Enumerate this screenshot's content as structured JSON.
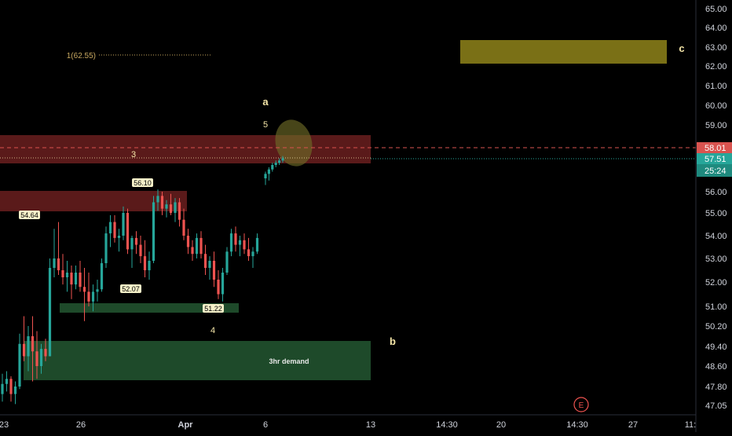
{
  "chart_data": {
    "type": "candlestick",
    "y_axis": {
      "position": "right",
      "ticks": [
        "65.00",
        "64.00",
        "63.00",
        "62.00",
        "61.00",
        "60.00",
        "59.00",
        "56.00",
        "55.00",
        "54.00",
        "53.00",
        "52.00",
        "51.00",
        "50.20",
        "49.40",
        "48.60",
        "47.80",
        "47.05"
      ],
      "tick_values": [
        65.0,
        64.0,
        63.0,
        62.0,
        61.0,
        60.0,
        59.0,
        56.0,
        55.0,
        54.0,
        53.0,
        52.0,
        51.0,
        50.2,
        49.4,
        48.6,
        47.8,
        47.05
      ]
    },
    "x_axis": {
      "ticks": [
        "23",
        "26",
        "Apr",
        "6",
        "13",
        "14:30",
        "20",
        "14:30",
        "27",
        "11:"
      ]
    },
    "price_badges": [
      {
        "label": "58.01",
        "value": 58.01,
        "color": "#d9534f"
      },
      {
        "label": "57.51",
        "value": 57.51,
        "color": "#26a69a"
      },
      {
        "label": "25:24",
        "value": 56.96,
        "color": "#26a69a"
      }
    ],
    "wave_labels": {
      "a": "a",
      "b": "b",
      "c": "c",
      "w3": "3",
      "w4": "4",
      "w5": "5"
    },
    "zones": {
      "demand_label": "3hr demand"
    },
    "fib_label": "1(62.55)",
    "pivot_labels": [
      {
        "label": "54.64",
        "value": 54.64
      },
      {
        "label": "56.10",
        "value": 56.1
      },
      {
        "label": "52.07",
        "value": 52.07
      },
      {
        "label": "51.22",
        "value": 51.22
      }
    ],
    "event_marker": "E",
    "colors": {
      "up": "#26a69a",
      "down": "#ef5350",
      "background": "#000000",
      "supply_zone": "#5a1a1a",
      "demand_zone": "#1e4a2a",
      "target_zone": "#7a7016",
      "wave_label": "#f5e6a8"
    },
    "candles": [
      [
        47.5,
        48.3,
        47.2,
        47.9
      ],
      [
        47.9,
        48.4,
        47.6,
        48.1
      ],
      [
        48.1,
        48.2,
        47.2,
        47.5
      ],
      [
        47.5,
        48.0,
        47.1,
        47.8
      ],
      [
        47.8,
        49.9,
        47.7,
        49.5
      ],
      [
        49.5,
        50.6,
        48.8,
        49.0
      ],
      [
        49.0,
        50.2,
        48.4,
        49.8
      ],
      [
        49.8,
        50.6,
        48.0,
        49.2
      ],
      [
        49.2,
        50.0,
        48.1,
        48.6
      ],
      [
        48.6,
        49.5,
        48.3,
        49.3
      ],
      [
        49.3,
        49.7,
        48.8,
        49.0
      ],
      [
        49.0,
        53.0,
        49.0,
        52.6
      ],
      [
        52.6,
        54.3,
        52.2,
        53.0
      ],
      [
        53.0,
        54.6,
        52.3,
        52.5
      ],
      [
        52.5,
        53.2,
        51.9,
        52.2
      ],
      [
        52.2,
        52.9,
        51.6,
        52.4
      ],
      [
        52.4,
        52.7,
        51.3,
        51.9
      ],
      [
        51.9,
        52.7,
        51.7,
        52.4
      ],
      [
        52.4,
        52.9,
        51.6,
        51.8
      ],
      [
        51.8,
        52.6,
        50.4,
        51.6
      ],
      [
        51.6,
        52.4,
        51.0,
        51.2
      ],
      [
        51.2,
        51.9,
        50.8,
        51.6
      ],
      [
        51.6,
        52.1,
        51.2,
        51.7
      ],
      [
        51.7,
        53.0,
        51.6,
        52.8
      ],
      [
        52.8,
        54.4,
        52.6,
        54.1
      ],
      [
        54.1,
        54.9,
        53.5,
        54.6
      ],
      [
        54.6,
        54.9,
        53.7,
        53.9
      ],
      [
        53.9,
        54.3,
        53.3,
        54.0
      ],
      [
        54.0,
        55.3,
        53.8,
        55.0
      ],
      [
        55.0,
        55.2,
        53.2,
        53.4
      ],
      [
        53.4,
        54.0,
        52.6,
        53.9
      ],
      [
        53.9,
        54.2,
        53.2,
        53.6
      ],
      [
        53.6,
        54.0,
        52.8,
        53.1
      ],
      [
        53.1,
        53.8,
        52.2,
        52.5
      ],
      [
        52.5,
        53.3,
        52.1,
        52.9
      ],
      [
        52.9,
        55.8,
        52.8,
        55.5
      ],
      [
        55.5,
        56.1,
        55.1,
        55.8
      ],
      [
        55.8,
        56.0,
        54.9,
        55.2
      ],
      [
        55.2,
        55.6,
        54.8,
        55.4
      ],
      [
        55.4,
        55.9,
        54.9,
        55.0
      ],
      [
        55.0,
        55.7,
        54.6,
        55.5
      ],
      [
        55.5,
        55.7,
        54.4,
        54.7
      ],
      [
        54.7,
        55.2,
        53.8,
        54.0
      ],
      [
        54.0,
        54.3,
        53.2,
        53.5
      ],
      [
        53.5,
        53.8,
        52.9,
        53.2
      ],
      [
        53.2,
        54.1,
        53.0,
        53.9
      ],
      [
        53.9,
        54.2,
        53.0,
        53.2
      ],
      [
        53.2,
        53.6,
        52.3,
        52.6
      ],
      [
        52.6,
        53.1,
        52.1,
        52.9
      ],
      [
        52.9,
        53.3,
        51.8,
        52.1
      ],
      [
        52.1,
        52.5,
        51.3,
        51.5
      ],
      [
        51.5,
        52.6,
        51.2,
        52.4
      ],
      [
        52.4,
        53.5,
        52.3,
        53.3
      ],
      [
        53.3,
        54.3,
        53.1,
        54.1
      ],
      [
        54.1,
        54.4,
        53.3,
        53.6
      ],
      [
        53.6,
        54.0,
        53.1,
        53.8
      ],
      [
        53.8,
        54.1,
        53.2,
        53.4
      ],
      [
        53.4,
        53.9,
        52.9,
        53.1
      ],
      [
        53.1,
        53.5,
        52.6,
        53.3
      ],
      [
        53.3,
        54.1,
        53.2,
        53.9
      ],
      [
        56.6,
        56.9,
        56.3,
        56.8
      ],
      [
        56.8,
        57.1,
        56.5,
        57.0
      ],
      [
        57.0,
        57.3,
        56.9,
        57.2
      ],
      [
        57.2,
        57.4,
        57.1,
        57.3
      ],
      [
        57.3,
        57.5,
        57.2,
        57.4
      ],
      [
        57.4,
        57.6,
        57.3,
        57.5
      ]
    ]
  }
}
